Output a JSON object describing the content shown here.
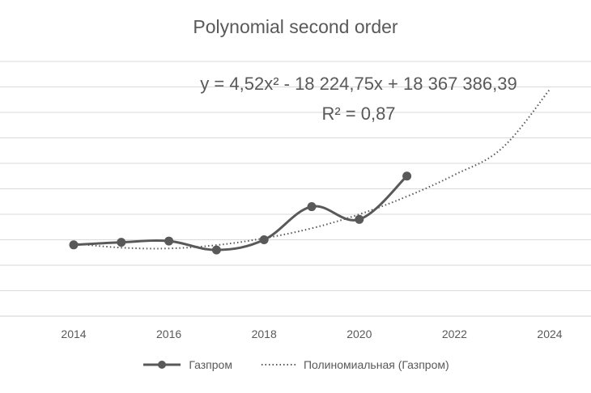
{
  "chart_data": {
    "type": "line",
    "title": "Polynomial second order",
    "xlabel": "",
    "ylabel": "",
    "xlim": [
      2013,
      2024
    ],
    "x_ticks": [
      "2014",
      "2016",
      "2018",
      "2020",
      "2022",
      "2024"
    ],
    "y_axis_labels_visible": false,
    "grid": "horizontal",
    "legend_position": "bottom",
    "series": [
      {
        "name": "Газпром",
        "style": "solid-smooth-with-markers",
        "color": "#595959",
        "x": [
          2014,
          2015,
          2016,
          2017,
          2018,
          2019,
          2020,
          2021
        ],
        "y": [
          2.8,
          2.9,
          2.95,
          2.6,
          3.0,
          4.3,
          3.8,
          5.5
        ]
      },
      {
        "name": "Полиномиальная (Газпром)",
        "style": "dotted-trendline",
        "color": "#595959",
        "x": [
          2014,
          2015,
          2016,
          2017,
          2018,
          2019,
          2020,
          2021,
          2022,
          2023,
          2024
        ],
        "y": [
          2.85,
          2.69,
          2.66,
          2.79,
          3.06,
          3.45,
          4.0,
          4.7,
          5.55,
          6.6,
          8.9
        ]
      }
    ],
    "annotations": {
      "equation": "y = 4,52x² - 18 224,75x + 18 367 386,39",
      "r_squared": "R² = 0,87"
    }
  }
}
